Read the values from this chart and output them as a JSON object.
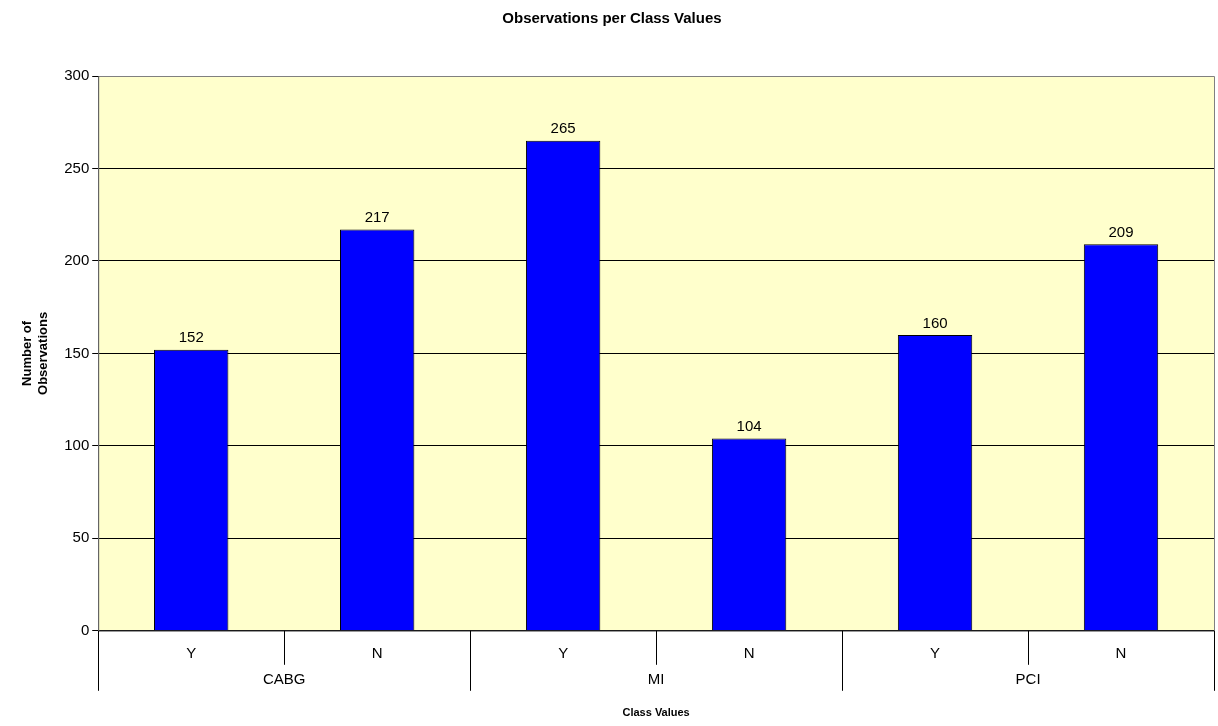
{
  "chart_data": {
    "type": "bar",
    "title": "Observations per Class Values",
    "xlabel": "Class Values",
    "ylabel": "Number of Observations",
    "categories": [
      "Y",
      "N",
      "Y",
      "N",
      "Y",
      "N"
    ],
    "values": [
      152,
      217,
      265,
      104,
      160,
      209
    ],
    "color": "#0000ff",
    "annotations": [
      "CABG",
      "MI",
      "PCI"
    ],
    "ylim": [
      0,
      300
    ],
    "yticks": [
      0,
      50,
      100,
      150,
      200,
      250,
      300
    ],
    "grid": "y",
    "data_labels": true,
    "legend": false
  }
}
